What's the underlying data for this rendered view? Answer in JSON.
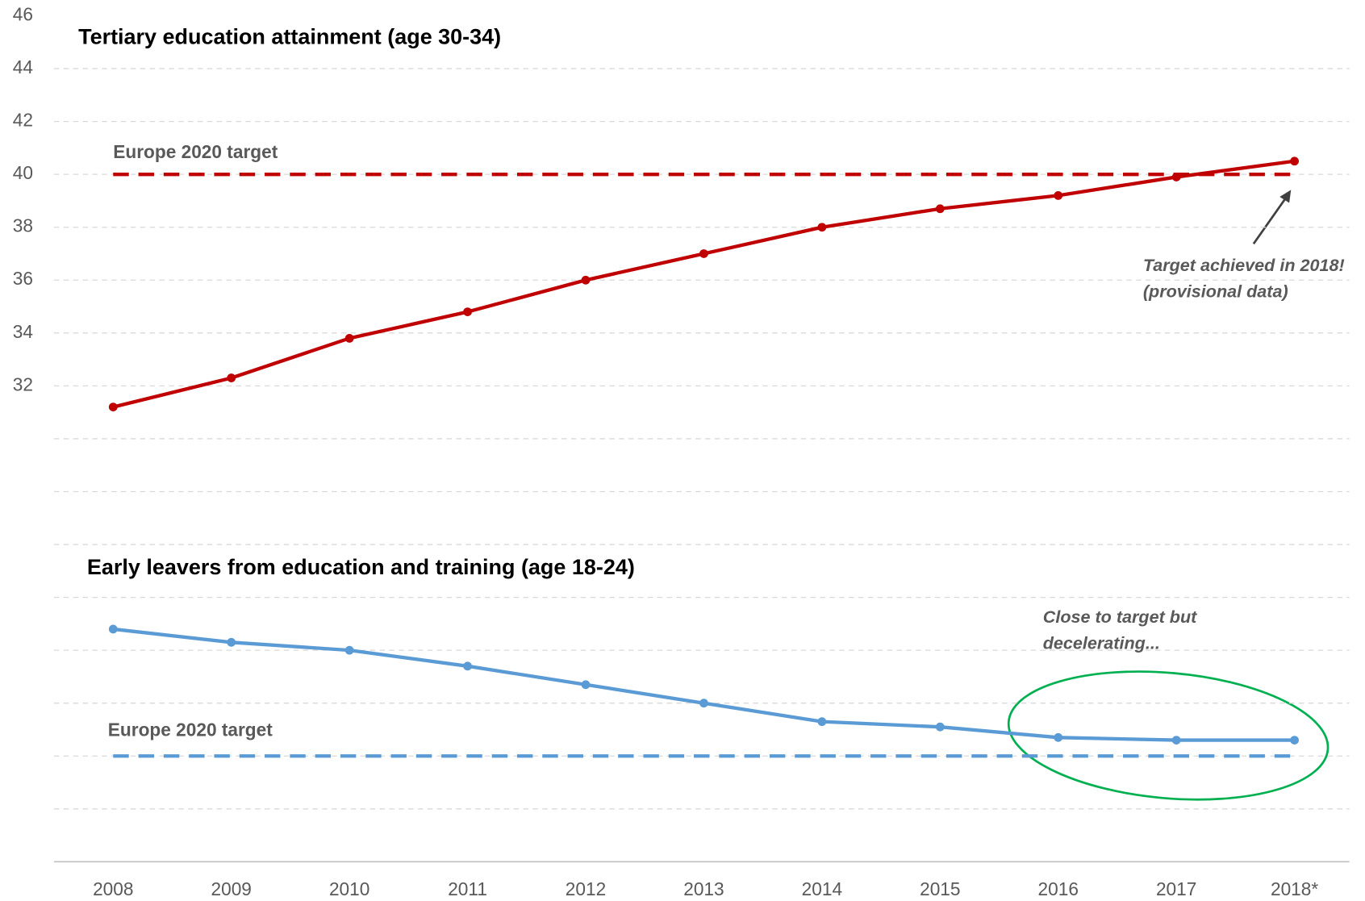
{
  "chart_data": {
    "type": "line",
    "categories": [
      "2008",
      "2009",
      "2010",
      "2011",
      "2012",
      "2013",
      "2014",
      "2015",
      "2016",
      "2017",
      "2018*"
    ],
    "ylim": [
      14,
      46
    ],
    "yticks": [
      32,
      34,
      36,
      38,
      40,
      42,
      44,
      46
    ],
    "ygrid": [
      16,
      18,
      20,
      22,
      24,
      26,
      28,
      30,
      32,
      34,
      36,
      38,
      40,
      42,
      44
    ],
    "grid": true,
    "series": [
      {
        "name": "Tertiary education attainment (age 30-34)",
        "color": "#c00000",
        "values": [
          31.2,
          32.3,
          33.8,
          34.8,
          36.0,
          37.0,
          38.0,
          38.7,
          39.2,
          39.9,
          40.5
        ],
        "target": {
          "label": "Europe 2020 target",
          "value": 40
        }
      },
      {
        "name": "Early leavers from education and training (age 18-24)",
        "color": "#5b9bd5",
        "values": [
          22.8,
          22.3,
          22.0,
          21.4,
          20.7,
          20.0,
          19.3,
          19.1,
          18.7,
          18.6,
          18.6
        ],
        "target": {
          "label": "Europe 2020 target",
          "value": 18
        }
      }
    ],
    "annotations": [
      {
        "lines": [
          "Target achieved in 2018!",
          "(provisional data)"
        ],
        "color": "#404040"
      },
      {
        "lines": [
          "Close to target but",
          "decelerating..."
        ],
        "color": "#00b050"
      }
    ]
  }
}
